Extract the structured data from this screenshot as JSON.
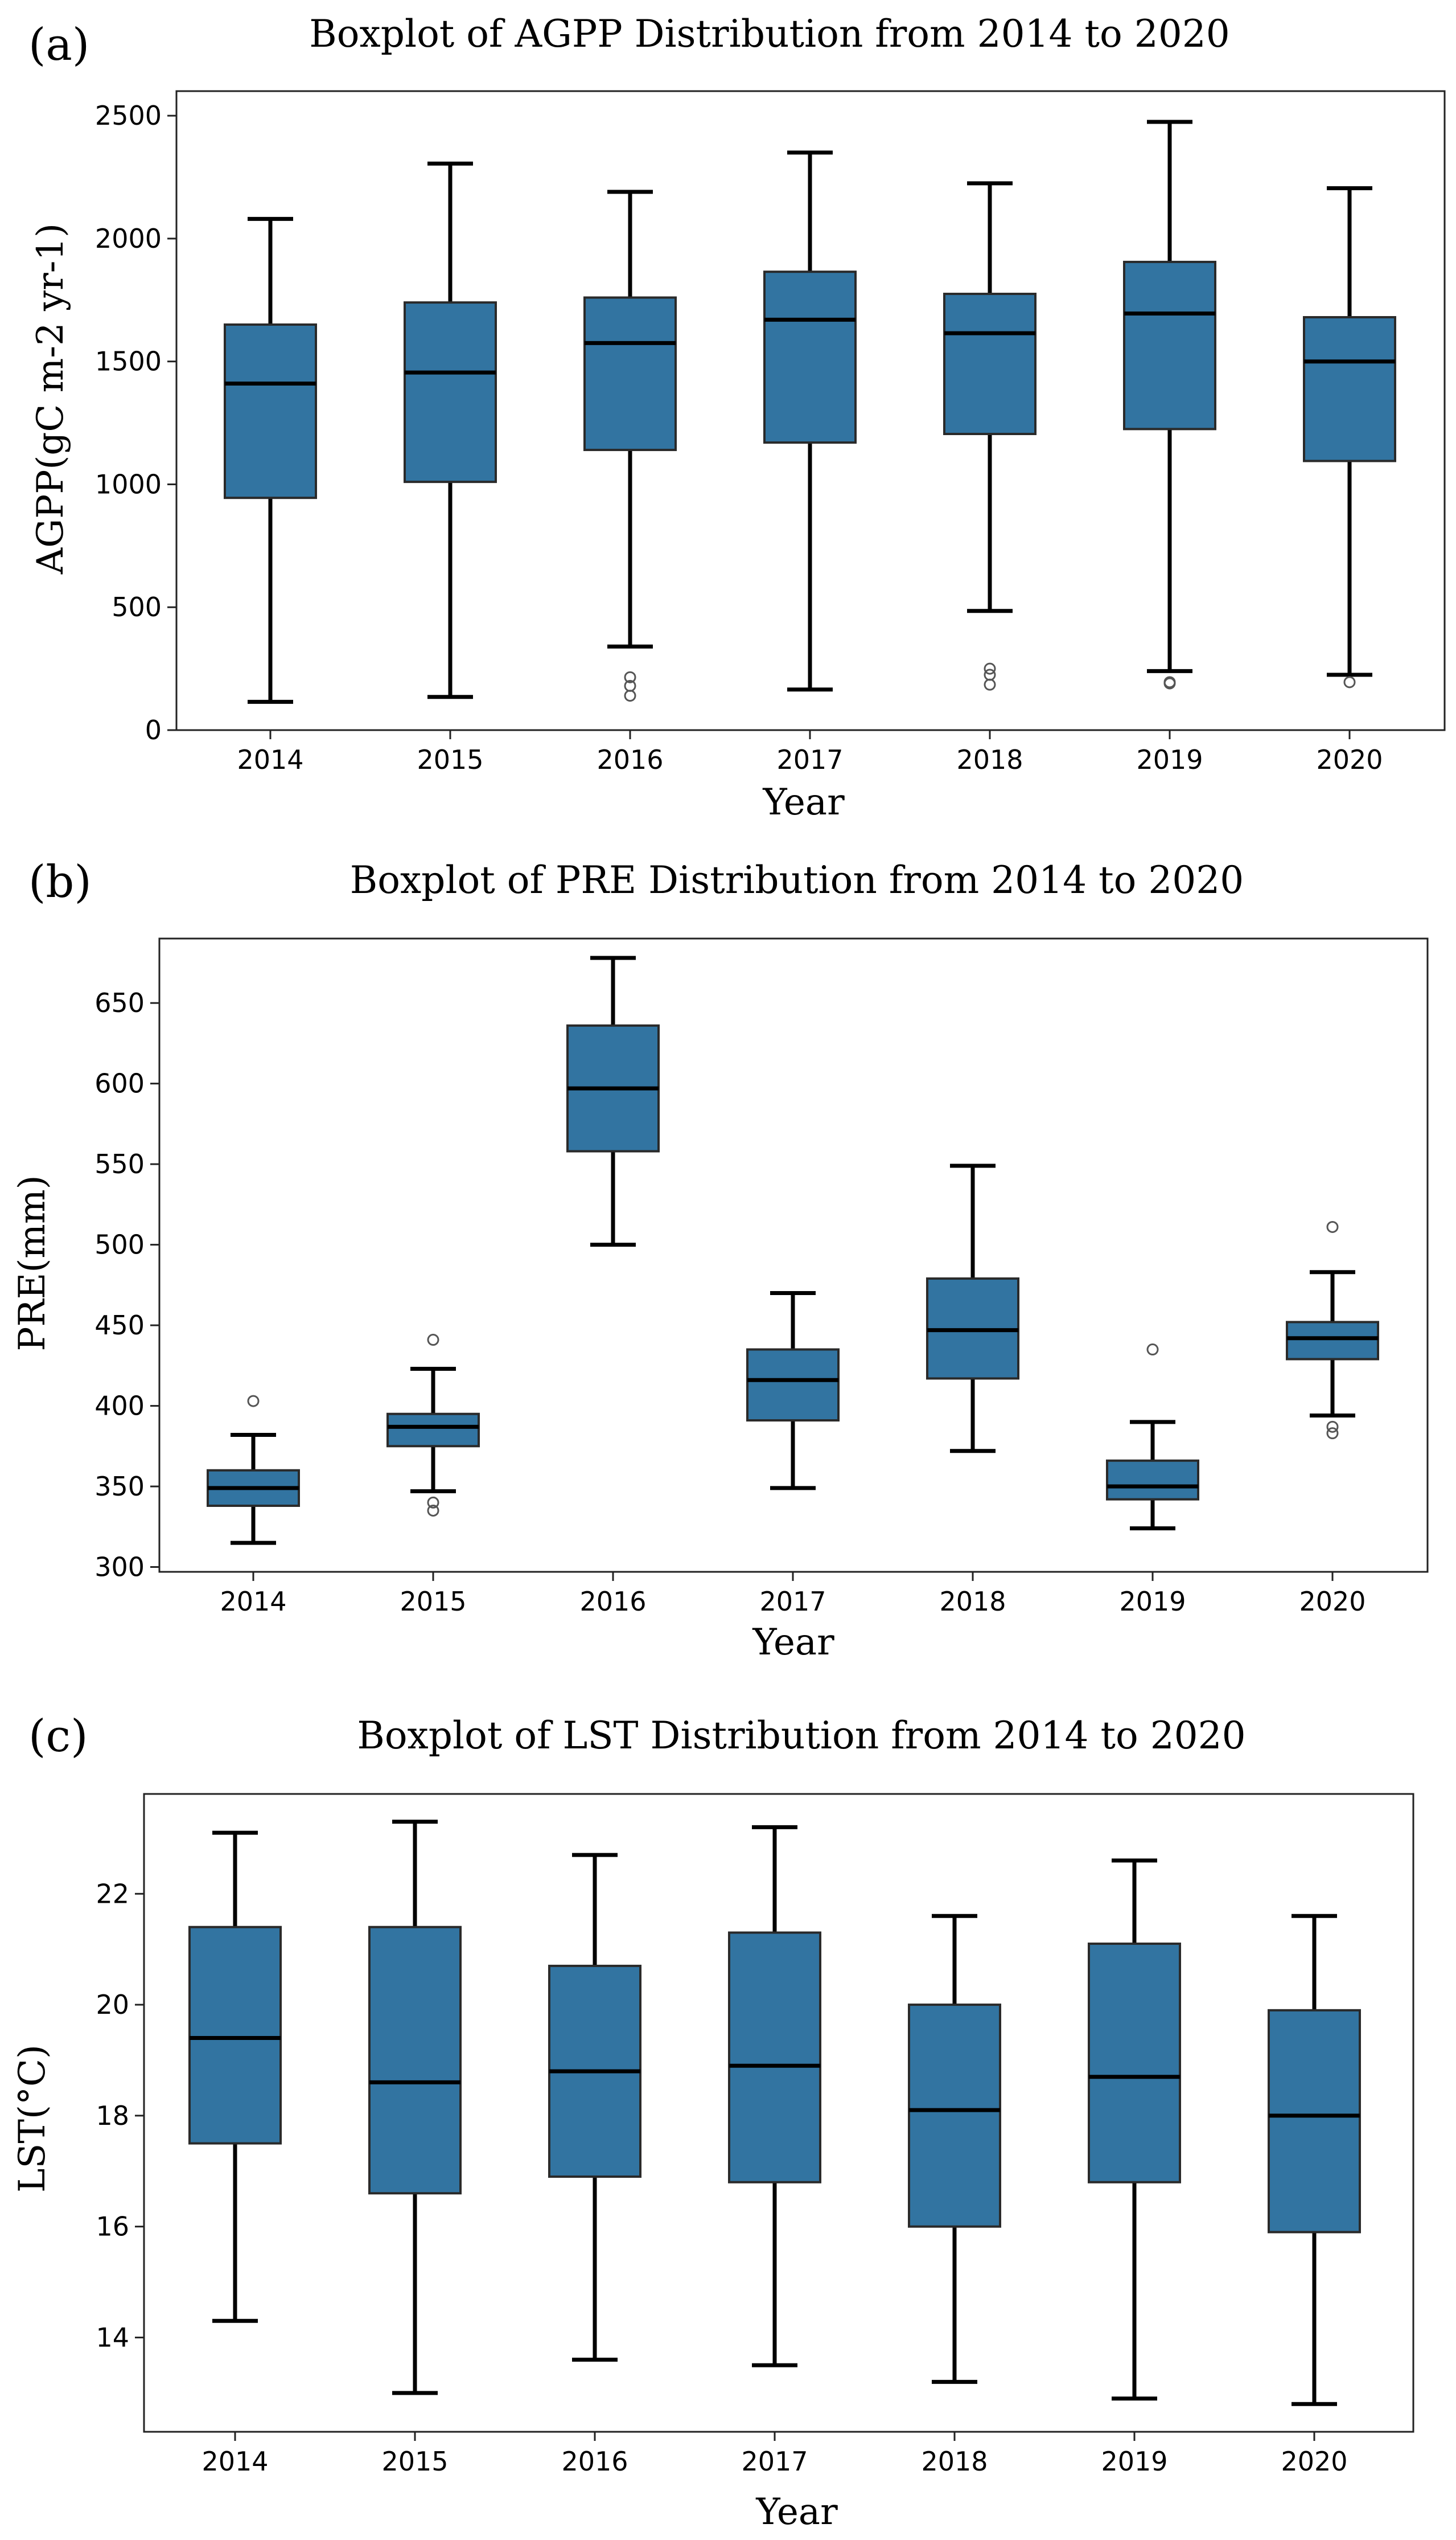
{
  "chart_data": [
    {
      "type": "boxplot",
      "panel_label": "(a)",
      "title": "Boxplot of AGPP Distribution from 2014 to 2020",
      "xlabel": "Year",
      "ylabel": "AGPP(gC m-2 yr-1)",
      "categories": [
        "2014",
        "2015",
        "2016",
        "2017",
        "2018",
        "2019",
        "2020"
      ],
      "ylim": [
        0,
        2600
      ],
      "yticks": [
        0,
        500,
        1000,
        1500,
        2000,
        2500
      ],
      "box_color": "#3274a1",
      "boxes": [
        {
          "whislo": 115,
          "q1": 945,
          "med": 1410,
          "q3": 1650,
          "whishi": 2080,
          "fliers": []
        },
        {
          "whislo": 135,
          "q1": 1010,
          "med": 1455,
          "q3": 1740,
          "whishi": 2305,
          "fliers": []
        },
        {
          "whislo": 340,
          "q1": 1140,
          "med": 1575,
          "q3": 1760,
          "whishi": 2190,
          "fliers": [
            215,
            180,
            140
          ]
        },
        {
          "whislo": 165,
          "q1": 1170,
          "med": 1670,
          "q3": 1865,
          "whishi": 2350,
          "fliers": []
        },
        {
          "whislo": 485,
          "q1": 1205,
          "med": 1615,
          "q3": 1775,
          "whishi": 2225,
          "fliers": [
            250,
            225,
            185
          ]
        },
        {
          "whislo": 240,
          "q1": 1225,
          "med": 1695,
          "q3": 1905,
          "whishi": 2475,
          "fliers": [
            195,
            190
          ]
        },
        {
          "whislo": 225,
          "q1": 1095,
          "med": 1500,
          "q3": 1680,
          "whishi": 2205,
          "fliers": [
            195
          ]
        }
      ]
    },
    {
      "type": "boxplot",
      "panel_label": "(b)",
      "title": "Boxplot of PRE Distribution from 2014 to 2020",
      "xlabel": "Year",
      "ylabel": "PRE(mm)",
      "categories": [
        "2014",
        "2015",
        "2016",
        "2017",
        "2018",
        "2019",
        "2020"
      ],
      "ylim": [
        297,
        690
      ],
      "yticks": [
        300,
        350,
        400,
        450,
        500,
        550,
        600,
        650
      ],
      "box_color": "#3274a1",
      "boxes": [
        {
          "whislo": 315,
          "q1": 338,
          "med": 349,
          "q3": 360,
          "whishi": 382,
          "fliers": [
            403
          ]
        },
        {
          "whislo": 347,
          "q1": 375,
          "med": 387,
          "q3": 395,
          "whishi": 423,
          "fliers": [
            441,
            340,
            335
          ]
        },
        {
          "whislo": 500,
          "q1": 558,
          "med": 597,
          "q3": 636,
          "whishi": 678,
          "fliers": []
        },
        {
          "whislo": 349,
          "q1": 391,
          "med": 416,
          "q3": 435,
          "whishi": 470,
          "fliers": []
        },
        {
          "whislo": 372,
          "q1": 417,
          "med": 447,
          "q3": 479,
          "whishi": 549,
          "fliers": []
        },
        {
          "whislo": 324,
          "q1": 342,
          "med": 350,
          "q3": 366,
          "whishi": 390,
          "fliers": [
            435
          ]
        },
        {
          "whislo": 394,
          "q1": 429,
          "med": 442,
          "q3": 452,
          "whishi": 483,
          "fliers": [
            511,
            387,
            383
          ]
        }
      ]
    },
    {
      "type": "boxplot",
      "panel_label": "(c)",
      "title": "Boxplot of LST Distribution from 2014 to 2020",
      "xlabel": "Year",
      "ylabel": "LST(°C)",
      "categories": [
        "2014",
        "2015",
        "2016",
        "2017",
        "2018",
        "2019",
        "2020"
      ],
      "ylim": [
        12.3,
        23.8
      ],
      "yticks": [
        14,
        16,
        18,
        20,
        22
      ],
      "box_color": "#3274a1",
      "boxes": [
        {
          "whislo": 14.3,
          "q1": 17.5,
          "med": 19.4,
          "q3": 21.4,
          "whishi": 23.1,
          "fliers": []
        },
        {
          "whislo": 13.0,
          "q1": 16.6,
          "med": 18.6,
          "q3": 21.4,
          "whishi": 23.3,
          "fliers": []
        },
        {
          "whislo": 13.6,
          "q1": 16.9,
          "med": 18.8,
          "q3": 20.7,
          "whishi": 22.7,
          "fliers": []
        },
        {
          "whislo": 13.5,
          "q1": 16.8,
          "med": 18.9,
          "q3": 21.3,
          "whishi": 23.2,
          "fliers": []
        },
        {
          "whislo": 13.2,
          "q1": 16.0,
          "med": 18.1,
          "q3": 20.0,
          "whishi": 21.6,
          "fliers": []
        },
        {
          "whislo": 12.9,
          "q1": 16.8,
          "med": 18.7,
          "q3": 21.1,
          "whishi": 22.6,
          "fliers": []
        },
        {
          "whislo": 12.8,
          "q1": 15.9,
          "med": 18.0,
          "q3": 19.9,
          "whishi": 21.6,
          "fliers": []
        }
      ]
    }
  ]
}
